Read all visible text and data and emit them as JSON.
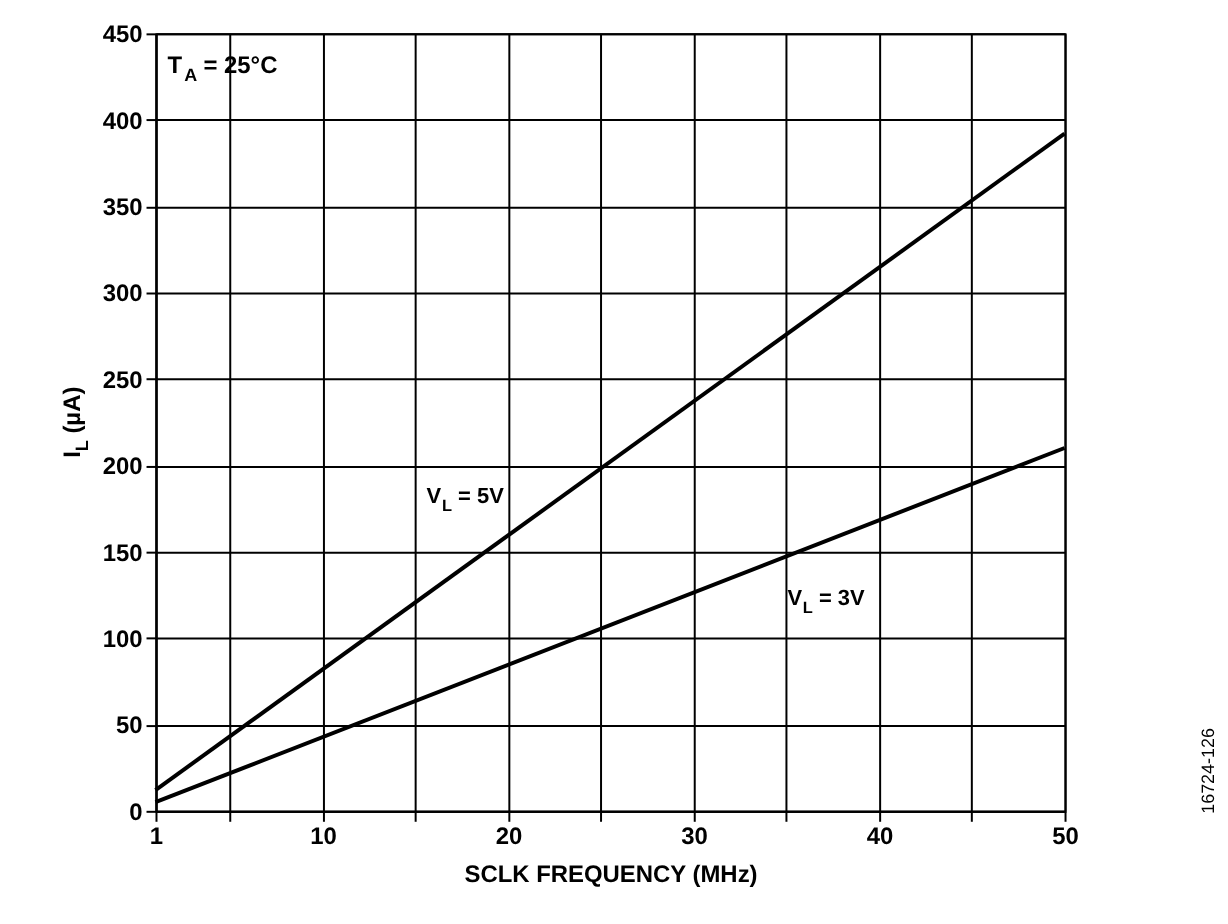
{
  "chart_data": {
    "type": "line",
    "xlabel": "SCLK FREQUENCY (MHz)",
    "ylabel": "I$_{L}$ (µA)",
    "series": [
      {
        "name": "V$_{L}$ = 5V",
        "color": "#000000",
        "values": [
          12,
          392
        ]
      },
      {
        "name": "V$_{L}$ = 3V",
        "color": "#000000",
        "values": [
          5,
          210
        ]
      }
    ],
    "x": [
      1,
      50
    ],
    "xlim": [
      1,
      50
    ],
    "xticks": [
      1,
      {
        "value": 5,
        "label": null
      },
      10,
      {
        "value": 15,
        "label": null
      },
      20,
      {
        "value": 25,
        "label": null
      },
      30,
      {
        "value": 35,
        "label": null
      },
      40,
      {
        "value": 45,
        "label": null
      },
      50
    ],
    "ylim": [
      0,
      450
    ],
    "yticks": [
      0,
      50,
      100,
      150,
      200,
      250,
      300,
      350,
      400,
      450
    ],
    "grid": true,
    "marker": "none",
    "line_style": "solid",
    "annotations": [
      "T$_{A}$ = 25°C",
      "16724-126"
    ]
  }
}
